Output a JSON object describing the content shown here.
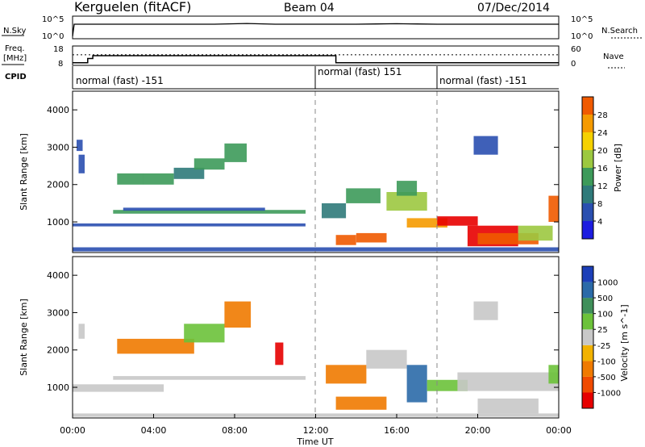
{
  "header": {
    "station": "Kerguelen (fitACF)",
    "beam": "Beam 04",
    "date": "07/Dec/2014"
  },
  "noise_panel": {
    "left_label": "N.Sky",
    "right_label": "N.Search",
    "left_ticks": [
      "10^5",
      "10^0"
    ],
    "right_ticks": [
      "10^5",
      "10^0"
    ]
  },
  "freq_panel": {
    "left_label_1": "Freq.",
    "left_label_2": "[MHz]",
    "right_label": "Nave",
    "left_ticks": [
      "18",
      "8"
    ],
    "right_ticks": [
      "60",
      "0"
    ]
  },
  "cpid": {
    "label": "CPID",
    "segments": [
      {
        "start_hour": 0,
        "text": "normal (fast) -151"
      },
      {
        "start_hour": 12,
        "text": "normal (fast) 151"
      },
      {
        "start_hour": 18,
        "text": "normal (fast) -151"
      }
    ]
  },
  "colors": {
    "power_scale": [
      "#1c1ce0",
      "#2a4fb0",
      "#2f7a7a",
      "#3d9a5a",
      "#9cc840",
      "#f5d100",
      "#f59a00",
      "#f05a00",
      "#e80000"
    ],
    "velocity_scale": [
      "#1c3fb8",
      "#2b6aa8",
      "#3f8f5a",
      "#6cc23a",
      "#c8c8c8",
      "#f2b200",
      "#f07a00",
      "#f04a00",
      "#e60000"
    ]
  },
  "chart_data": [
    {
      "type": "line",
      "title": "",
      "ylabel_left": "N.Sky",
      "ylabel_right": "N.Search",
      "x": [
        0,
        0.08,
        0.5,
        1.5,
        3,
        5,
        7,
        8.6,
        10,
        12,
        13,
        14,
        15,
        16,
        17,
        18,
        19,
        20,
        22,
        24
      ],
      "series": [
        {
          "name": "N.Sky",
          "values_log10": [
            0,
            5,
            5,
            5,
            5,
            5,
            5,
            5.3,
            5,
            5,
            5,
            5,
            5.1,
            5.2,
            5.1,
            5,
            5,
            5,
            5,
            5
          ]
        }
      ]
    },
    {
      "type": "line",
      "ylabel_left": "Freq. [MHz]",
      "ylabel_right": "Nave",
      "ylim_left": [
        8,
        18
      ],
      "ylim_right": [
        0,
        60
      ],
      "x": [
        0,
        0.75,
        0.75,
        1.0,
        1.0,
        12.0,
        13.0,
        13.0,
        24
      ],
      "series": [
        {
          "name": "Freq.",
          "values": [
            9.0,
            9.0,
            11.4,
            11.4,
            13.0,
            13.0,
            13.0,
            9.0,
            9.0
          ]
        },
        {
          "name": "Nave",
          "values": [
            33,
            33,
            33,
            33,
            33,
            33,
            33,
            33,
            33
          ]
        }
      ]
    },
    {
      "type": "heatmap",
      "xlabel": "",
      "ylabel": "Slant Range [km]",
      "colorbar_label": "Power [dB]",
      "colorbar_ticks": [
        4,
        8,
        12,
        16,
        20,
        24,
        28
      ],
      "xlim": [
        0,
        24
      ],
      "ylim": [
        180,
        4500
      ],
      "yticks": [
        1000,
        2000,
        3000,
        4000
      ],
      "blobs": [
        {
          "x0": 0.3,
          "x1": 0.6,
          "r0": 2300,
          "r1": 2800,
          "level": 1
        },
        {
          "x0": 0.2,
          "x1": 0.5,
          "r0": 2900,
          "r1": 3200,
          "level": 1
        },
        {
          "x0": 2.2,
          "x1": 3.5,
          "r0": 2000,
          "r1": 2300,
          "level": 3
        },
        {
          "x0": 3.5,
          "x1": 5.0,
          "r0": 2000,
          "r1": 2300,
          "level": 3
        },
        {
          "x0": 5.0,
          "x1": 6.5,
          "r0": 2150,
          "r1": 2450,
          "level": 2
        },
        {
          "x0": 6.0,
          "x1": 7.5,
          "r0": 2400,
          "r1": 2700,
          "level": 3
        },
        {
          "x0": 7.5,
          "x1": 8.6,
          "r0": 2600,
          "r1": 3100,
          "level": 3
        },
        {
          "x0": 2.0,
          "x1": 11.5,
          "r0": 1220,
          "r1": 1320,
          "level": 3
        },
        {
          "x0": 2.5,
          "x1": 9.5,
          "r0": 1300,
          "r1": 1380,
          "level": 1
        },
        {
          "x0": 0.0,
          "x1": 11.5,
          "r0": 880,
          "r1": 960,
          "level": 1
        },
        {
          "x0": 0.0,
          "x1": 24.0,
          "r0": 210,
          "r1": 320,
          "level": 1
        },
        {
          "x0": 12.3,
          "x1": 13.5,
          "r0": 1100,
          "r1": 1500,
          "level": 2
        },
        {
          "x0": 13.0,
          "x1": 14.0,
          "r0": 380,
          "r1": 650,
          "level": 7
        },
        {
          "x0": 14.0,
          "x1": 15.5,
          "r0": 450,
          "r1": 700,
          "level": 7
        },
        {
          "x0": 13.5,
          "x1": 15.2,
          "r0": 1500,
          "r1": 1900,
          "level": 3
        },
        {
          "x0": 15.5,
          "x1": 17.5,
          "r0": 1300,
          "r1": 1800,
          "level": 4
        },
        {
          "x0": 16.0,
          "x1": 17.0,
          "r0": 1700,
          "r1": 2100,
          "level": 3
        },
        {
          "x0": 16.5,
          "x1": 18.5,
          "r0": 850,
          "r1": 1100,
          "level": 6
        },
        {
          "x0": 18.0,
          "x1": 20.0,
          "r0": 900,
          "r1": 1150,
          "level": 8
        },
        {
          "x0": 19.5,
          "x1": 22.0,
          "r0": 350,
          "r1": 900,
          "level": 8
        },
        {
          "x0": 20.0,
          "x1": 23.0,
          "r0": 400,
          "r1": 700,
          "level": 7
        },
        {
          "x0": 22.0,
          "x1": 23.7,
          "r0": 500,
          "r1": 900,
          "level": 4
        },
        {
          "x0": 23.5,
          "x1": 24.0,
          "r0": 1000,
          "r1": 1700,
          "level": 7
        },
        {
          "x0": 19.8,
          "x1": 21.0,
          "r0": 2800,
          "r1": 3300,
          "level": 1
        }
      ]
    },
    {
      "type": "heatmap",
      "xlabel": "Time UT",
      "ylabel": "Slant Range [km]",
      "colorbar_label": "Velocity [m s^-1]",
      "colorbar_ticks": [
        1000,
        500,
        100,
        25,
        -25,
        -100,
        -500,
        -1000
      ],
      "xlim": [
        0,
        24
      ],
      "ylim": [
        180,
        4500
      ],
      "yticks": [
        1000,
        2000,
        3000,
        4000
      ],
      "xticks": [
        "00:00",
        "04:00",
        "08:00",
        "12:00",
        "16:00",
        "20:00",
        "00:00"
      ],
      "blobs": [
        {
          "x0": 0.3,
          "x1": 0.6,
          "r0": 2300,
          "r1": 2700,
          "level": 4
        },
        {
          "x0": 2.2,
          "x1": 4.0,
          "r0": 1900,
          "r1": 2300,
          "level": 6
        },
        {
          "x0": 4.0,
          "x1": 6.0,
          "r0": 1900,
          "r1": 2300,
          "level": 6
        },
        {
          "x0": 5.5,
          "x1": 7.5,
          "r0": 2200,
          "r1": 2700,
          "level": 3
        },
        {
          "x0": 7.5,
          "x1": 8.8,
          "r0": 2600,
          "r1": 3300,
          "level": 6
        },
        {
          "x0": 10.0,
          "x1": 10.4,
          "r0": 1600,
          "r1": 2200,
          "level": 8
        },
        {
          "x0": 2.0,
          "x1": 11.5,
          "r0": 1200,
          "r1": 1300,
          "level": 4
        },
        {
          "x0": 0.0,
          "x1": 4.5,
          "r0": 880,
          "r1": 1080,
          "level": 4
        },
        {
          "x0": 0.0,
          "x1": 24.0,
          "r0": 210,
          "r1": 300,
          "level": 4
        },
        {
          "x0": 13.0,
          "x1": 15.5,
          "r0": 400,
          "r1": 750,
          "level": 6
        },
        {
          "x0": 12.5,
          "x1": 14.5,
          "r0": 1100,
          "r1": 1600,
          "level": 6
        },
        {
          "x0": 14.5,
          "x1": 16.5,
          "r0": 1500,
          "r1": 2000,
          "level": 4
        },
        {
          "x0": 16.5,
          "x1": 17.5,
          "r0": 600,
          "r1": 1600,
          "level": 1
        },
        {
          "x0": 17.5,
          "x1": 19.5,
          "r0": 900,
          "r1": 1200,
          "level": 3
        },
        {
          "x0": 19.0,
          "x1": 24.0,
          "r0": 900,
          "r1": 1400,
          "level": 4
        },
        {
          "x0": 20.0,
          "x1": 23.0,
          "r0": 300,
          "r1": 700,
          "level": 4
        },
        {
          "x0": 23.5,
          "x1": 24.0,
          "r0": 1100,
          "r1": 1600,
          "level": 3
        },
        {
          "x0": 19.8,
          "x1": 21.0,
          "r0": 2800,
          "r1": 3300,
          "level": 4
        }
      ]
    }
  ]
}
